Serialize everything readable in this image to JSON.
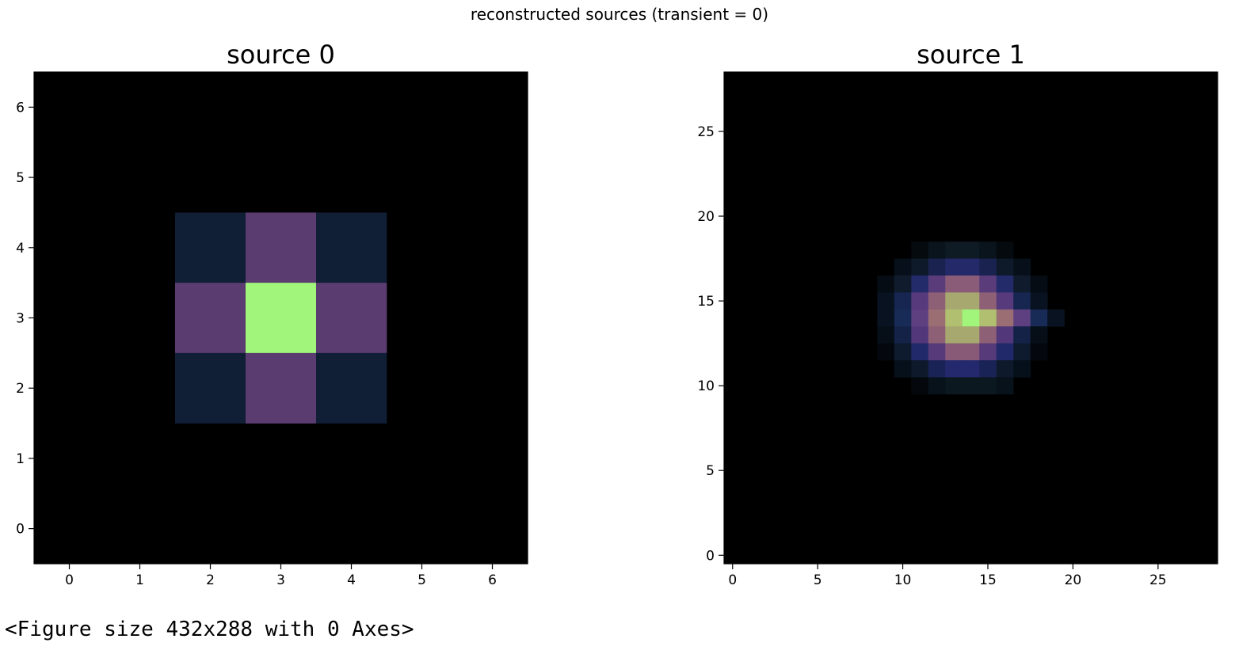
{
  "figure": {
    "suptitle": "reconstructed sources (transient = 0)"
  },
  "output_text": "<Figure size 432x288 with 0 Axes>",
  "chart_data": [
    {
      "type": "heatmap",
      "title": "source 0",
      "xlabel": "",
      "ylabel": "",
      "xlim": [
        -0.5,
        6.5
      ],
      "ylim": [
        -0.5,
        6.5
      ],
      "xticks": [
        0,
        1,
        2,
        3,
        4,
        5,
        6
      ],
      "yticks": [
        0,
        1,
        2,
        3,
        4,
        5,
        6
      ],
      "background": "#000000",
      "cells": [
        {
          "x": 2,
          "y": 4,
          "color": "#101e36"
        },
        {
          "x": 3,
          "y": 4,
          "color": "#5a3c70"
        },
        {
          "x": 4,
          "y": 4,
          "color": "#101e36"
        },
        {
          "x": 2,
          "y": 3,
          "color": "#5a3c70"
        },
        {
          "x": 3,
          "y": 3,
          "color": "#a0f57a"
        },
        {
          "x": 4,
          "y": 3,
          "color": "#5a3c70"
        },
        {
          "x": 2,
          "y": 2,
          "color": "#101e36"
        },
        {
          "x": 3,
          "y": 2,
          "color": "#5a3c70"
        },
        {
          "x": 4,
          "y": 2,
          "color": "#101e36"
        }
      ]
    },
    {
      "type": "heatmap",
      "title": "source 1",
      "xlabel": "",
      "ylabel": "",
      "xlim": [
        -0.5,
        28.5
      ],
      "ylim": [
        -0.5,
        28.5
      ],
      "xticks": [
        0,
        5,
        10,
        15,
        20,
        25
      ],
      "yticks": [
        0,
        5,
        10,
        15,
        20,
        25
      ],
      "background": "#000000",
      "cells": [
        {
          "x": 11,
          "y": 18,
          "color": "#050a0e"
        },
        {
          "x": 12,
          "y": 18,
          "color": "#0a141c"
        },
        {
          "x": 13,
          "y": 18,
          "color": "#0e1a24"
        },
        {
          "x": 14,
          "y": 18,
          "color": "#0e1a24"
        },
        {
          "x": 15,
          "y": 18,
          "color": "#0a141c"
        },
        {
          "x": 16,
          "y": 18,
          "color": "#050a0e"
        },
        {
          "x": 10,
          "y": 17,
          "color": "#07101a"
        },
        {
          "x": 11,
          "y": 17,
          "color": "#0e1a2a"
        },
        {
          "x": 12,
          "y": 17,
          "color": "#1a2350"
        },
        {
          "x": 13,
          "y": 17,
          "color": "#24296a"
        },
        {
          "x": 14,
          "y": 17,
          "color": "#24296a"
        },
        {
          "x": 15,
          "y": 17,
          "color": "#1a2350"
        },
        {
          "x": 16,
          "y": 17,
          "color": "#0e1a2a"
        },
        {
          "x": 17,
          "y": 17,
          "color": "#07101a"
        },
        {
          "x": 9,
          "y": 16,
          "color": "#060c14"
        },
        {
          "x": 10,
          "y": 16,
          "color": "#101c2e"
        },
        {
          "x": 11,
          "y": 16,
          "color": "#232b6a"
        },
        {
          "x": 12,
          "y": 16,
          "color": "#5a3c7a"
        },
        {
          "x": 13,
          "y": 16,
          "color": "#8a5c78"
        },
        {
          "x": 14,
          "y": 16,
          "color": "#8a5c78"
        },
        {
          "x": 15,
          "y": 16,
          "color": "#5a3c7a"
        },
        {
          "x": 16,
          "y": 16,
          "color": "#232b6a"
        },
        {
          "x": 17,
          "y": 16,
          "color": "#101c2e"
        },
        {
          "x": 18,
          "y": 16,
          "color": "#060c14"
        },
        {
          "x": 9,
          "y": 15,
          "color": "#081220"
        },
        {
          "x": 10,
          "y": 15,
          "color": "#162650"
        },
        {
          "x": 11,
          "y": 15,
          "color": "#563a7c"
        },
        {
          "x": 12,
          "y": 15,
          "color": "#8e6076"
        },
        {
          "x": 13,
          "y": 15,
          "color": "#a6a870"
        },
        {
          "x": 14,
          "y": 15,
          "color": "#a6a870"
        },
        {
          "x": 15,
          "y": 15,
          "color": "#8e6076"
        },
        {
          "x": 16,
          "y": 15,
          "color": "#563a7c"
        },
        {
          "x": 17,
          "y": 15,
          "color": "#162650"
        },
        {
          "x": 18,
          "y": 15,
          "color": "#081220"
        },
        {
          "x": 9,
          "y": 14,
          "color": "#081220"
        },
        {
          "x": 10,
          "y": 14,
          "color": "#182a56"
        },
        {
          "x": 11,
          "y": 14,
          "color": "#5e4080"
        },
        {
          "x": 12,
          "y": 14,
          "color": "#9a6e72"
        },
        {
          "x": 13,
          "y": 14,
          "color": "#b0c070"
        },
        {
          "x": 14,
          "y": 14,
          "color": "#a0f57a"
        },
        {
          "x": 15,
          "y": 14,
          "color": "#b0c070"
        },
        {
          "x": 16,
          "y": 14,
          "color": "#9a6e72"
        },
        {
          "x": 17,
          "y": 14,
          "color": "#5e4080"
        },
        {
          "x": 18,
          "y": 14,
          "color": "#182a56"
        },
        {
          "x": 19,
          "y": 14,
          "color": "#081220"
        },
        {
          "x": 9,
          "y": 13,
          "color": "#060e18"
        },
        {
          "x": 10,
          "y": 13,
          "color": "#142248"
        },
        {
          "x": 11,
          "y": 13,
          "color": "#52387a"
        },
        {
          "x": 12,
          "y": 13,
          "color": "#8e6076"
        },
        {
          "x": 13,
          "y": 13,
          "color": "#a6a870"
        },
        {
          "x": 14,
          "y": 13,
          "color": "#a6a870"
        },
        {
          "x": 15,
          "y": 13,
          "color": "#8e6076"
        },
        {
          "x": 16,
          "y": 13,
          "color": "#52387a"
        },
        {
          "x": 17,
          "y": 13,
          "color": "#142248"
        },
        {
          "x": 18,
          "y": 13,
          "color": "#060e18"
        },
        {
          "x": 9,
          "y": 12,
          "color": "#04080e"
        },
        {
          "x": 10,
          "y": 12,
          "color": "#0e1a2e"
        },
        {
          "x": 11,
          "y": 12,
          "color": "#22296a"
        },
        {
          "x": 12,
          "y": 12,
          "color": "#563a7a"
        },
        {
          "x": 13,
          "y": 12,
          "color": "#885a78"
        },
        {
          "x": 14,
          "y": 12,
          "color": "#885a78"
        },
        {
          "x": 15,
          "y": 12,
          "color": "#563a7a"
        },
        {
          "x": 16,
          "y": 12,
          "color": "#22296a"
        },
        {
          "x": 17,
          "y": 12,
          "color": "#0e1a2e"
        },
        {
          "x": 18,
          "y": 12,
          "color": "#04080e"
        },
        {
          "x": 10,
          "y": 11,
          "color": "#06101a"
        },
        {
          "x": 11,
          "y": 11,
          "color": "#0e1a2c"
        },
        {
          "x": 12,
          "y": 11,
          "color": "#1a2356"
        },
        {
          "x": 13,
          "y": 11,
          "color": "#24296e"
        },
        {
          "x": 14,
          "y": 11,
          "color": "#24296e"
        },
        {
          "x": 15,
          "y": 11,
          "color": "#1a2356"
        },
        {
          "x": 16,
          "y": 11,
          "color": "#0e1a2c"
        },
        {
          "x": 17,
          "y": 11,
          "color": "#06101a"
        },
        {
          "x": 11,
          "y": 10,
          "color": "#04080c"
        },
        {
          "x": 12,
          "y": 10,
          "color": "#08121a"
        },
        {
          "x": 13,
          "y": 10,
          "color": "#0c1820"
        },
        {
          "x": 14,
          "y": 10,
          "color": "#0c1820"
        },
        {
          "x": 15,
          "y": 10,
          "color": "#0c1820"
        },
        {
          "x": 16,
          "y": 10,
          "color": "#08121a"
        }
      ]
    }
  ]
}
